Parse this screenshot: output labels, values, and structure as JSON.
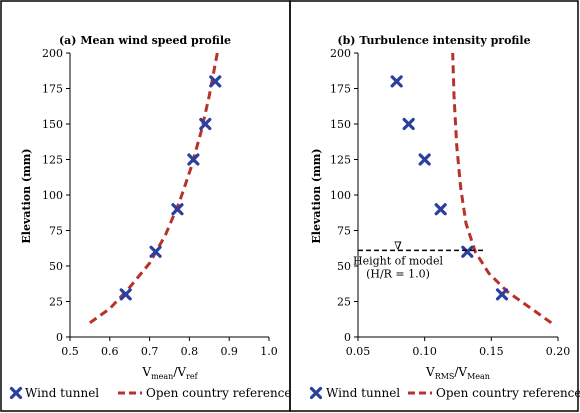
{
  "colors": {
    "marker": "#2a3f9e",
    "reference_line": "#b8322c",
    "axis": "#000000",
    "panel_border": "#000000"
  },
  "chart_data": [
    {
      "type": "scatter",
      "title": "(a) Mean wind speed profile",
      "xlabel": {
        "main": "V",
        "sub1": "mean",
        "mid": "/V",
        "sub2": "ref"
      },
      "ylabel": "Elevation (mm)",
      "xlim": [
        0.5,
        1.0
      ],
      "ylim": [
        0,
        200
      ],
      "x_ticks": [
        "0.5",
        "0.6",
        "0.7",
        "0.8",
        "0.9",
        "1.0"
      ],
      "y_ticks": [
        "0",
        "25",
        "50",
        "75",
        "100",
        "125",
        "150",
        "175",
        "200"
      ],
      "grid": false,
      "legend_position": "bottom",
      "series": [
        {
          "name": "Wind tunnel",
          "kind": "marker-x",
          "points": [
            {
              "x": 0.64,
              "y": 30
            },
            {
              "x": 0.715,
              "y": 60
            },
            {
              "x": 0.77,
              "y": 90
            },
            {
              "x": 0.81,
              "y": 125
            },
            {
              "x": 0.84,
              "y": 150
            },
            {
              "x": 0.865,
              "y": 180
            }
          ]
        },
        {
          "name": "Open country reference",
          "kind": "dashed-line",
          "points": [
            {
              "x": 0.55,
              "y": 10
            },
            {
              "x": 0.6,
              "y": 20
            },
            {
              "x": 0.65,
              "y": 35
            },
            {
              "x": 0.7,
              "y": 52
            },
            {
              "x": 0.74,
              "y": 72
            },
            {
              "x": 0.775,
              "y": 95
            },
            {
              "x": 0.805,
              "y": 120
            },
            {
              "x": 0.83,
              "y": 145
            },
            {
              "x": 0.85,
              "y": 170
            },
            {
              "x": 0.87,
              "y": 200
            }
          ]
        }
      ]
    },
    {
      "type": "scatter",
      "title": "(b) Turbulence intensity profile",
      "xlabel": {
        "main": "V",
        "sub1": "RMS",
        "mid": "/V",
        "sub2": "Mean"
      },
      "ylabel": "Elevation (mm)",
      "xlim": [
        0.05,
        0.2
      ],
      "ylim": [
        0,
        200
      ],
      "x_ticks": [
        "0.05",
        "0.10",
        "0.15",
        "0.20"
      ],
      "y_ticks": [
        "0",
        "25",
        "50",
        "75",
        "100",
        "125",
        "150",
        "175",
        "200"
      ],
      "grid": false,
      "legend_position": "bottom",
      "annotation": {
        "line1": "Height of model",
        "line2": "(H/R = 1.0)",
        "marker": "∇",
        "y": 61
      },
      "series": [
        {
          "name": "Wind tunnel",
          "kind": "marker-x",
          "points": [
            {
              "x": 0.158,
              "y": 30
            },
            {
              "x": 0.132,
              "y": 60
            },
            {
              "x": 0.112,
              "y": 90
            },
            {
              "x": 0.1,
              "y": 125
            },
            {
              "x": 0.088,
              "y": 150
            },
            {
              "x": 0.079,
              "y": 180
            }
          ]
        },
        {
          "name": "Open country reference",
          "kind": "dashed-line",
          "points": [
            {
              "x": 0.195,
              "y": 10
            },
            {
              "x": 0.18,
              "y": 20
            },
            {
              "x": 0.162,
              "y": 32
            },
            {
              "x": 0.148,
              "y": 45
            },
            {
              "x": 0.138,
              "y": 60
            },
            {
              "x": 0.131,
              "y": 80
            },
            {
              "x": 0.127,
              "y": 105
            },
            {
              "x": 0.124,
              "y": 135
            },
            {
              "x": 0.122,
              "y": 170
            },
            {
              "x": 0.121,
              "y": 200
            }
          ]
        }
      ]
    }
  ]
}
